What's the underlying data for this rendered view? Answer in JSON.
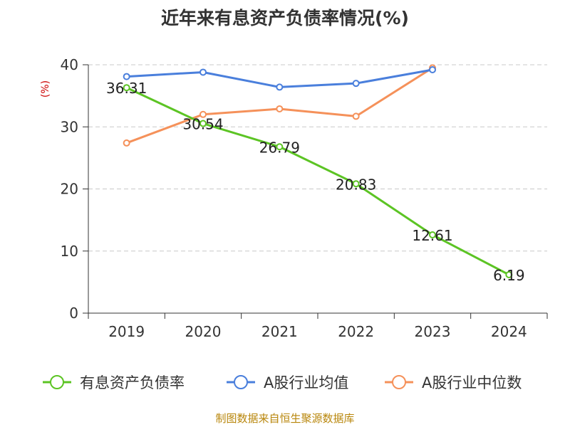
{
  "title": "近年来有息资产负债率情况(%)",
  "source": "制图数据来自恒生聚源数据库",
  "chart_data": {
    "type": "line",
    "title": "近年来有息资产负债率情况(%)",
    "ylabel": "(%)",
    "xlabel": "",
    "categories": [
      "2019",
      "2020",
      "2021",
      "2022",
      "2023",
      "2024"
    ],
    "ylim": [
      0,
      40
    ],
    "yticks": [
      0,
      10,
      20,
      30,
      40
    ],
    "grid": true,
    "legend_position": "bottom",
    "series": [
      {
        "name": "有息资产负债率",
        "color": "#5cc424",
        "values": [
          36.31,
          30.54,
          26.79,
          20.83,
          12.61,
          6.19
        ],
        "labels": [
          "36.31",
          "30.54",
          "26.79",
          "20.83",
          "12.61",
          "6.19"
        ],
        "show_labels": true
      },
      {
        "name": "A股行业均值",
        "color": "#4a7fdc",
        "values": [
          38.1,
          38.8,
          36.4,
          37.0,
          39.2,
          null
        ],
        "show_labels": false
      },
      {
        "name": "A股行业中位数",
        "color": "#f5915a",
        "values": [
          27.4,
          32.0,
          32.9,
          31.7,
          39.5,
          null
        ],
        "show_labels": false
      }
    ]
  }
}
